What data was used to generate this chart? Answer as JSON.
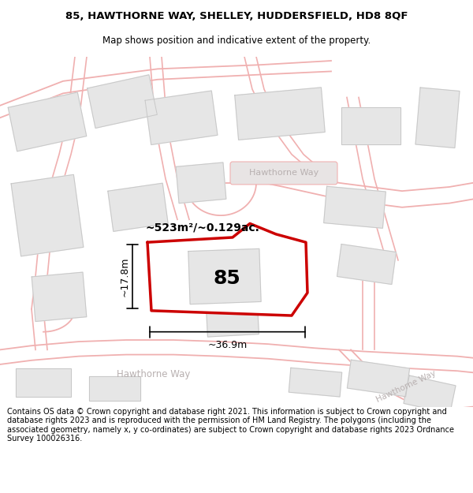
{
  "title_line1": "85, HAWTHORNE WAY, SHELLEY, HUDDERSFIELD, HD8 8QF",
  "title_line2": "Map shows position and indicative extent of the property.",
  "footer_text": "Contains OS data © Crown copyright and database right 2021. This information is subject to Crown copyright and database rights 2023 and is reproduced with the permission of HM Land Registry. The polygons (including the associated geometry, namely x, y co-ordinates) are subject to Crown copyright and database rights 2023 Ordnance Survey 100026316.",
  "map_bg": "#faf8f8",
  "road_line_color": "#f0b0b0",
  "road_fill_color": "#f8e8e8",
  "building_fill": "#e6e6e6",
  "building_edge": "#c8c8c8",
  "plot_fill": "#ffffff",
  "plot_edge": "#cc0000",
  "plot_label": "85",
  "area_text": "~523m²/~0.129ac.",
  "width_text": "~36.9m",
  "height_text": "~17.8m",
  "road_label_color": "#b8b0b0",
  "hawthorne_label_bg": "#e8e4e4",
  "title_fontsize": 9.5,
  "subtitle_fontsize": 8.5,
  "footer_fontsize": 7.0
}
